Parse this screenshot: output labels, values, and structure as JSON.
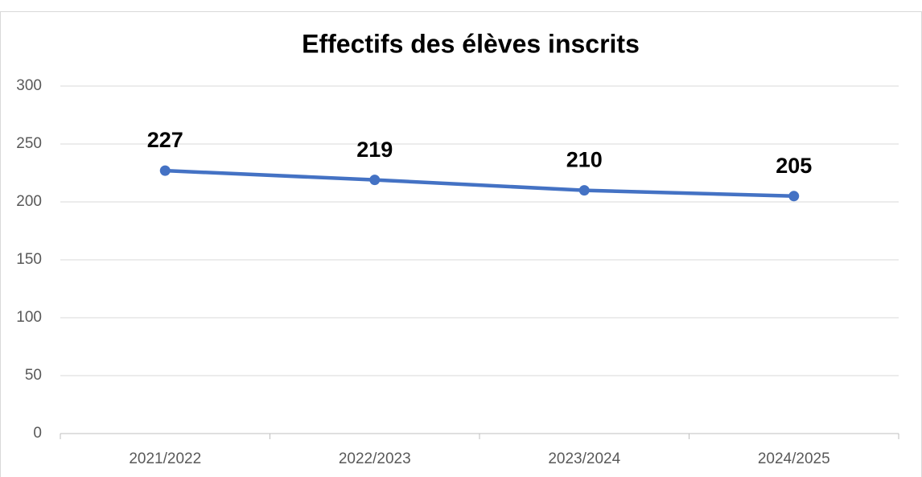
{
  "chart_data": {
    "type": "line",
    "title": "Effectifs des élèves inscrits",
    "categories": [
      "2021/2022",
      "2022/2023",
      "2023/2024",
      "2024/2025"
    ],
    "values": [
      227,
      219,
      210,
      205
    ],
    "color": "#4472c4",
    "ylim": [
      0,
      300
    ],
    "yticks": [
      0,
      50,
      100,
      150,
      200,
      250,
      300
    ],
    "grid": true
  }
}
